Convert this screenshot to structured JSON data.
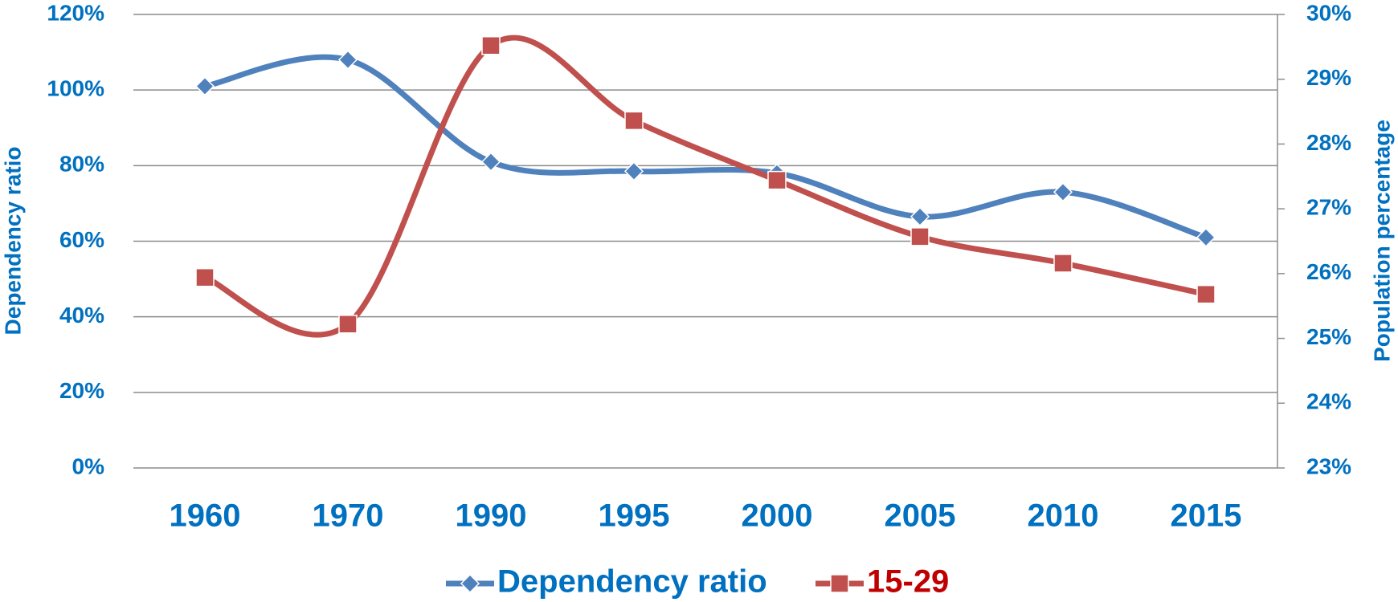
{
  "chart_data": {
    "type": "line",
    "categories": [
      "1960",
      "1970",
      "1990",
      "1995",
      "2000",
      "2005",
      "2010",
      "2015"
    ],
    "y_label": "Dependency ratio",
    "y2_label": "Population percentage",
    "ylim": [
      0,
      120
    ],
    "yticks": [
      {
        "value": 0,
        "label": "0%"
      },
      {
        "value": 20,
        "label": "20%"
      },
      {
        "value": 40,
        "label": "40%"
      },
      {
        "value": 60,
        "label": "60%"
      },
      {
        "value": 80,
        "label": "80%"
      },
      {
        "value": 100,
        "label": "100%"
      },
      {
        "value": 120,
        "label": "120%"
      }
    ],
    "y2lim": [
      23,
      30
    ],
    "y2ticks": [
      {
        "value": 23,
        "label": "23%"
      },
      {
        "value": 24,
        "label": "24%"
      },
      {
        "value": 25,
        "label": "25%"
      },
      {
        "value": 26,
        "label": "26%"
      },
      {
        "value": 27,
        "label": "27%"
      },
      {
        "value": 28,
        "label": "28%"
      },
      {
        "value": 29,
        "label": "29%"
      },
      {
        "value": 30,
        "label": "30%"
      }
    ],
    "grid": true,
    "legend": "bottom",
    "series": [
      {
        "name": "Dependency ratio",
        "color": "#4f81bd",
        "marker": "diamond",
        "label_color": "#0070c0",
        "values": [
          101,
          108,
          81,
          78.5,
          78,
          66.5,
          73,
          61
        ]
      },
      {
        "name": "15-29",
        "color": "#c0504d",
        "marker": "square",
        "label_color": "#c00000",
        "axis": "y2",
        "values": [
          25.94,
          25.22,
          29.52,
          28.36,
          27.44,
          26.57,
          26.16,
          25.68
        ]
      }
    ]
  }
}
